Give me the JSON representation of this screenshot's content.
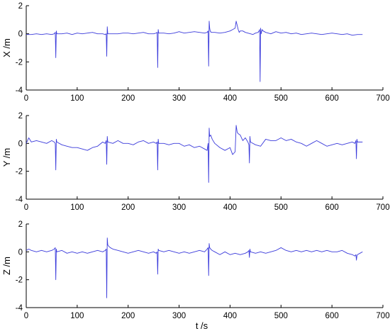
{
  "chart_data": [
    {
      "type": "line",
      "ylabel": "X /m",
      "xlabel": "",
      "xlim": [
        0,
        700
      ],
      "ylim": [
        -4,
        2
      ],
      "xticks": [
        0,
        100,
        200,
        300,
        400,
        500,
        600,
        700
      ],
      "yticks": [
        -4,
        -2,
        0,
        2
      ],
      "grid": false,
      "series": [
        {
          "color": "#3b3bdb",
          "x": [
            0,
            10,
            20,
            30,
            40,
            50,
            55,
            57,
            58,
            59,
            60,
            70,
            80,
            90,
            100,
            110,
            120,
            130,
            140,
            150,
            155,
            157,
            158,
            159,
            160,
            170,
            180,
            190,
            200,
            210,
            220,
            230,
            240,
            250,
            255,
            257,
            258,
            259,
            260,
            270,
            280,
            290,
            300,
            310,
            320,
            330,
            340,
            350,
            355,
            357,
            358,
            359,
            360,
            361,
            363,
            370,
            380,
            390,
            400,
            405,
            410,
            412,
            414,
            416,
            418,
            420,
            425,
            430,
            440,
            445,
            450,
            455,
            457,
            458,
            459,
            460,
            461,
            463,
            465,
            470,
            480,
            490,
            500,
            510,
            520,
            530,
            540,
            550,
            560,
            570,
            580,
            590,
            600,
            610,
            620,
            630,
            640,
            650,
            660
          ],
          "y": [
            -0.05,
            -0.05,
            0.0,
            -0.05,
            0.0,
            -0.05,
            0.0,
            0.1,
            -1.7,
            0.2,
            0.0,
            0.0,
            0.05,
            -0.05,
            0.05,
            0.0,
            0.05,
            0.1,
            0.0,
            0.0,
            -0.05,
            0.0,
            -1.6,
            0.5,
            0.0,
            0.0,
            0.0,
            0.05,
            0.05,
            0.0,
            0.05,
            0.1,
            0.0,
            0.0,
            0.05,
            0.1,
            -2.4,
            0.3,
            0.05,
            0.05,
            0.0,
            0.05,
            0.15,
            0.05,
            0.1,
            0.15,
            0.1,
            0.05,
            0.1,
            0.2,
            -2.3,
            0.9,
            0.4,
            0.2,
            0.1,
            0.1,
            0.05,
            0.1,
            0.2,
            0.3,
            0.4,
            0.9,
            0.6,
            0.3,
            0.1,
            0.2,
            0.2,
            0.1,
            0.0,
            -0.05,
            0.05,
            0.1,
            0.2,
            0.3,
            -3.4,
            0.4,
            0.0,
            0.3,
            0.2,
            0.1,
            0.0,
            0.15,
            0.05,
            0.1,
            0.0,
            0.05,
            -0.05,
            0.0,
            0.05,
            0.0,
            -0.05,
            0.0,
            0.05,
            0.0,
            -0.05,
            0.0,
            -0.1,
            -0.05,
            -0.05
          ]
        }
      ]
    },
    {
      "type": "line",
      "ylabel": "Y /m",
      "xlabel": "",
      "xlim": [
        0,
        700
      ],
      "ylim": [
        -4,
        2
      ],
      "xticks": [
        0,
        100,
        200,
        300,
        400,
        500,
        600,
        700
      ],
      "yticks": [
        -4,
        -2,
        0,
        2
      ],
      "grid": false,
      "series": [
        {
          "color": "#3b3bdb",
          "x": [
            0,
            5,
            10,
            20,
            30,
            40,
            50,
            55,
            57,
            58,
            59,
            60,
            70,
            80,
            90,
            100,
            110,
            120,
            130,
            140,
            150,
            155,
            157,
            158,
            159,
            160,
            170,
            180,
            190,
            200,
            210,
            220,
            230,
            240,
            250,
            255,
            257,
            258,
            259,
            260,
            270,
            280,
            290,
            300,
            310,
            320,
            330,
            340,
            350,
            355,
            357,
            358,
            359,
            360,
            362,
            365,
            370,
            380,
            390,
            400,
            405,
            410,
            412,
            414,
            416,
            420,
            425,
            430,
            435,
            437,
            438,
            439,
            440,
            450,
            460,
            470,
            480,
            490,
            500,
            510,
            520,
            530,
            540,
            550,
            560,
            570,
            580,
            590,
            600,
            610,
            620,
            630,
            640,
            645,
            647,
            648,
            649,
            650,
            660
          ],
          "y": [
            0.0,
            0.4,
            0.1,
            0.2,
            0.1,
            0.0,
            0.2,
            0.1,
            0.0,
            -1.9,
            0.3,
            0.1,
            -0.1,
            -0.2,
            -0.3,
            -0.3,
            -0.4,
            -0.5,
            -0.3,
            -0.2,
            0.1,
            0.0,
            0.2,
            -1.5,
            0.5,
            0.1,
            0.0,
            0.2,
            0.0,
            0.0,
            -0.1,
            0.1,
            0.2,
            0.0,
            0.1,
            0.0,
            0.1,
            -1.9,
            0.3,
            0.0,
            0.0,
            -0.1,
            0.0,
            0.0,
            -0.2,
            -0.1,
            -0.3,
            -0.2,
            -0.4,
            -0.5,
            0.0,
            -2.8,
            1.1,
            0.5,
            0.6,
            0.3,
            0.0,
            -0.3,
            -0.5,
            -0.3,
            -0.8,
            -0.6,
            1.3,
            0.8,
            0.7,
            0.6,
            0.2,
            0.4,
            0.1,
            -0.1,
            -1.4,
            0.5,
            0.1,
            -0.1,
            -0.2,
            0.3,
            0.2,
            0.2,
            0.4,
            0.2,
            0.3,
            0.1,
            0.0,
            -0.2,
            0.0,
            0.2,
            0.0,
            -0.2,
            -0.1,
            0.0,
            -0.1,
            0.0,
            0.1,
            0.0,
            0.2,
            -1.1,
            0.3,
            0.1,
            0.1
          ]
        }
      ]
    },
    {
      "type": "line",
      "ylabel": "Z /m",
      "xlabel": "t /s",
      "xlim": [
        0,
        700
      ],
      "ylim": [
        -4,
        2
      ],
      "xticks": [
        0,
        100,
        200,
        300,
        400,
        500,
        600,
        700
      ],
      "yticks": [
        -4,
        -2,
        0,
        2
      ],
      "grid": false,
      "series": [
        {
          "color": "#3b3bdb",
          "x": [
            0,
            5,
            10,
            20,
            30,
            40,
            50,
            55,
            57,
            58,
            59,
            60,
            70,
            80,
            90,
            100,
            110,
            120,
            130,
            140,
            150,
            155,
            157,
            158,
            159,
            160,
            162,
            165,
            170,
            180,
            190,
            200,
            210,
            220,
            230,
            240,
            250,
            255,
            257,
            258,
            259,
            260,
            270,
            280,
            290,
            300,
            310,
            320,
            330,
            340,
            350,
            355,
            357,
            358,
            359,
            360,
            362,
            365,
            370,
            380,
            390,
            400,
            410,
            420,
            430,
            435,
            437,
            438,
            439,
            440,
            450,
            460,
            470,
            480,
            490,
            500,
            510,
            520,
            530,
            540,
            550,
            560,
            570,
            580,
            590,
            600,
            610,
            620,
            630,
            640,
            645,
            647,
            648,
            649,
            650,
            655,
            660
          ],
          "y": [
            0.1,
            0.2,
            0.1,
            0.0,
            0.1,
            0.0,
            0.1,
            0.2,
            0.3,
            -2.0,
            0.2,
            0.0,
            0.1,
            -0.1,
            0.0,
            -0.1,
            0.0,
            -0.1,
            0.0,
            0.1,
            0.0,
            0.1,
            0.2,
            -3.3,
            1.0,
            0.5,
            0.4,
            0.3,
            0.2,
            0.1,
            0.0,
            -0.1,
            0.0,
            0.1,
            0.0,
            -0.1,
            0.0,
            -0.1,
            0.0,
            -1.6,
            0.2,
            0.1,
            0.0,
            0.1,
            0.0,
            -0.1,
            0.0,
            -0.1,
            0.0,
            0.1,
            0.0,
            0.2,
            0.3,
            -1.7,
            0.6,
            0.3,
            0.2,
            0.1,
            0.0,
            -0.2,
            0.0,
            -0.2,
            -0.1,
            -0.2,
            -0.1,
            0.0,
            0.1,
            -0.4,
            0.2,
            0.0,
            -0.1,
            0.0,
            -0.1,
            0.0,
            0.1,
            0.3,
            0.1,
            0.0,
            0.1,
            0.0,
            0.1,
            0.0,
            0.1,
            0.0,
            0.1,
            0.0,
            0.0,
            0.1,
            -0.1,
            -0.2,
            -0.3,
            -0.2,
            -0.6,
            -0.3,
            -0.2,
            -0.1,
            0.0
          ]
        }
      ]
    }
  ]
}
